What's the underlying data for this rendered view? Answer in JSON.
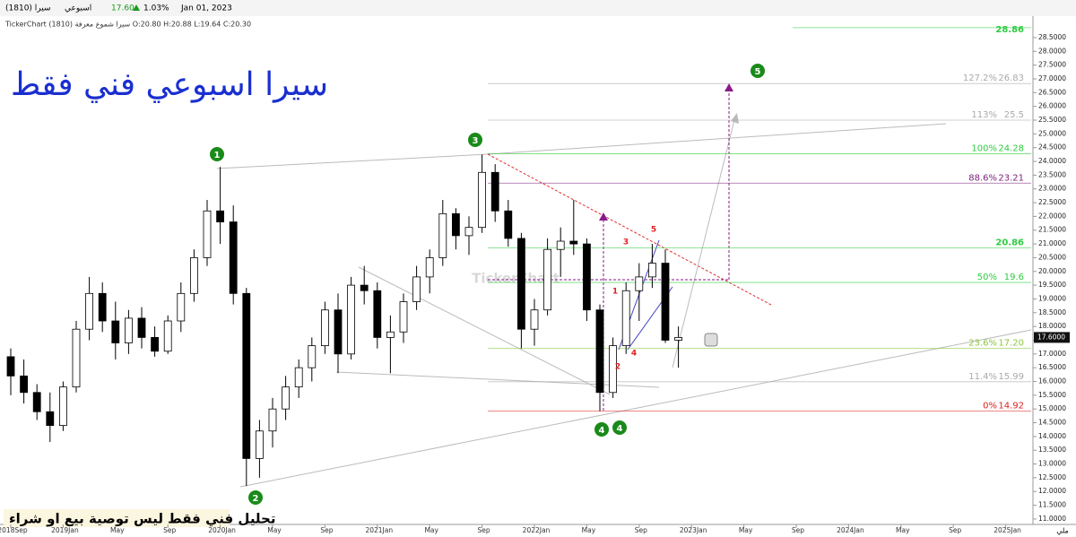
{
  "header": {
    "symbol": "سيرا (1810)",
    "period": "اسبوعي",
    "price": "17.60",
    "change": "1.03%",
    "date": "Jan 01, 2023",
    "info": "TickerChart سيرا شموع معرفة (1810) O:20.80 H:20.88 L:19.64 C:20.30"
  },
  "chart_data": {
    "type": "candlestick",
    "title": "سيرا اسبوعي فني فقط",
    "footer_note": "تحليل فني فقط ليس توصية بيع او شراء",
    "watermark": "TickerChart",
    "axis_unit": "ملي",
    "up_color": "#ffffff",
    "down_color": "#000000",
    "x": [
      "2018-09",
      "2018-10",
      "2018-11",
      "2018-12",
      "2019-01",
      "2019-02",
      "2019-03",
      "2019-04",
      "2019-05",
      "2019-06",
      "2019-07",
      "2019-08",
      "2019-09",
      "2019-10",
      "2019-11",
      "2019-12",
      "2020-01",
      "2020-02",
      "2020-03",
      "2020-04",
      "2020-05",
      "2020-06",
      "2020-07",
      "2020-08",
      "2020-09",
      "2020-10",
      "2020-11",
      "2020-12",
      "2021-01",
      "2021-02",
      "2021-03",
      "2021-04",
      "2021-05",
      "2021-06",
      "2021-07",
      "2021-08",
      "2021-09",
      "2021-10",
      "2021-11",
      "2021-12",
      "2022-01",
      "2022-02",
      "2022-03",
      "2022-04",
      "2022-05",
      "2022-06",
      "2022-07",
      "2022-08",
      "2022-09",
      "2022-10",
      "2022-11",
      "2022-12"
    ],
    "open": [
      16.9,
      16.2,
      15.6,
      14.9,
      14.4,
      15.8,
      17.9,
      19.2,
      18.2,
      17.4,
      18.3,
      17.6,
      17.1,
      18.2,
      19.2,
      20.5,
      22.2,
      21.8,
      19.2,
      13.2,
      14.2,
      15.0,
      15.8,
      16.5,
      17.3,
      18.6,
      17.0,
      19.5,
      19.3,
      17.6,
      17.8,
      18.9,
      19.8,
      20.5,
      22.1,
      21.3,
      21.6,
      23.6,
      22.2,
      21.2,
      17.9,
      18.6,
      20.8,
      21.1,
      21.0,
      18.6,
      15.6,
      17.3,
      19.3,
      19.8,
      20.3,
      17.5
    ],
    "high": [
      17.2,
      16.8,
      15.9,
      15.6,
      16.0,
      18.2,
      19.8,
      19.6,
      18.9,
      18.6,
      18.7,
      18.0,
      18.4,
      19.6,
      20.8,
      22.6,
      23.8,
      22.4,
      19.4,
      14.6,
      15.4,
      16.2,
      16.8,
      17.6,
      18.9,
      19.2,
      19.8,
      20.2,
      19.6,
      18.4,
      19.2,
      20.2,
      20.8,
      22.6,
      22.3,
      22.0,
      24.25,
      23.9,
      22.6,
      21.4,
      19.0,
      21.2,
      21.6,
      22.6,
      21.2,
      18.8,
      17.6,
      19.6,
      20.3,
      21.0,
      20.8,
      18.0
    ],
    "low": [
      15.5,
      15.2,
      14.6,
      13.8,
      14.2,
      15.6,
      17.5,
      17.8,
      16.8,
      17.0,
      17.2,
      16.9,
      17.0,
      17.8,
      18.9,
      20.2,
      21.0,
      18.8,
      12.2,
      12.5,
      13.6,
      14.6,
      15.4,
      16.0,
      17.0,
      16.3,
      16.8,
      18.8,
      17.2,
      16.3,
      17.4,
      18.6,
      19.2,
      20.2,
      20.8,
      20.6,
      21.4,
      21.8,
      20.9,
      17.2,
      17.3,
      18.4,
      19.8,
      20.6,
      18.2,
      14.92,
      15.4,
      17.0,
      18.2,
      19.4,
      17.4,
      16.5
    ],
    "close": [
      16.2,
      15.6,
      14.9,
      14.4,
      15.8,
      17.9,
      19.2,
      18.2,
      17.4,
      18.3,
      17.6,
      17.1,
      18.2,
      19.2,
      20.5,
      22.2,
      21.8,
      19.2,
      13.2,
      14.2,
      15.0,
      15.8,
      16.5,
      17.3,
      18.6,
      17.0,
      19.5,
      19.3,
      17.6,
      17.8,
      18.9,
      19.8,
      20.5,
      22.1,
      21.3,
      21.6,
      23.6,
      22.2,
      21.2,
      17.9,
      18.6,
      20.8,
      21.1,
      21.0,
      18.6,
      15.6,
      17.3,
      19.3,
      19.8,
      20.3,
      17.5,
      17.6
    ],
    "last_price": {
      "value": 17.6,
      "label": "17.6000"
    },
    "fib_levels": [
      {
        "value": 28.86,
        "color": "#2ecc40"
      },
      {
        "pct": "127.2%",
        "value": 26.83,
        "color": "#aaaaaa"
      },
      {
        "pct": "113%",
        "value": 25.5,
        "color": "#aaaaaa"
      },
      {
        "pct": "100%",
        "value": 24.28,
        "color": "#2ecc40"
      },
      {
        "pct": "88.6%",
        "value": 23.21,
        "color": "#7b1f7b"
      },
      {
        "value": 20.86,
        "color": "#2ecc40"
      },
      {
        "pct": "50%",
        "value": 19.6,
        "color": "#2ecc40"
      },
      {
        "pct": "23.6%",
        "value": 17.2,
        "value_label": "17.20",
        "color": "#8cc63f"
      },
      {
        "pct": "11.4%",
        "value": 15.99,
        "color": "#aaaaaa"
      },
      {
        "pct": "0%",
        "value": 14.92,
        "color": "#e0201c"
      }
    ],
    "wave_circles": [
      "1",
      "2",
      "3",
      "4",
      "4",
      "5"
    ],
    "wave_labels": [
      "1",
      "2",
      "3",
      "4",
      "5"
    ],
    "ylim": [
      10.9,
      29.15
    ],
    "yticks": [
      {
        "value": 11,
        "label": "11.0000"
      },
      {
        "value": 11.5,
        "label": "11.5000"
      },
      {
        "value": 12,
        "label": "12.0000"
      },
      {
        "value": 12.5,
        "label": "12.5000"
      },
      {
        "value": 13,
        "label": "13.0000"
      },
      {
        "value": 13.5,
        "label": "13.5000"
      },
      {
        "value": 14,
        "label": "14.0000"
      },
      {
        "value": 14.5,
        "label": "14.5000"
      },
      {
        "value": 15,
        "label": "15.0000"
      },
      {
        "value": 15.5,
        "label": "15.5000"
      },
      {
        "value": 16,
        "label": "16.0000"
      },
      {
        "value": 16.5,
        "label": "16.5000"
      },
      {
        "value": 17,
        "label": "17.0000"
      },
      {
        "value": 17.5,
        "label": "17.5000"
      },
      {
        "value": 18,
        "label": "18.0000"
      },
      {
        "value": 18.5,
        "label": "18.5000"
      },
      {
        "value": 19,
        "label": "19.0000"
      },
      {
        "value": 19.5,
        "label": "19.5000"
      },
      {
        "value": 20,
        "label": "20.0000"
      },
      {
        "value": 20.5,
        "label": "20.5000"
      },
      {
        "value": 21,
        "label": "21.0000"
      },
      {
        "value": 21.5,
        "label": "21.5000"
      },
      {
        "value": 22,
        "label": "22.0000"
      },
      {
        "value": 22.5,
        "label": "22.5000"
      },
      {
        "value": 23,
        "label": "23.0000"
      },
      {
        "value": 23.5,
        "label": "23.5000"
      },
      {
        "value": 24,
        "label": "24.0000"
      },
      {
        "value": 24.5,
        "label": "24.5000"
      },
      {
        "value": 25,
        "label": "25.0000"
      },
      {
        "value": 25.5,
        "label": "25.5000"
      },
      {
        "value": 26,
        "label": "26.0000"
      },
      {
        "value": 26.5,
        "label": "26.5000"
      },
      {
        "value": 27,
        "label": "27.0000"
      },
      {
        "value": 27.5,
        "label": "27.5000"
      },
      {
        "value": 28,
        "label": "28.0000"
      },
      {
        "value": 28.5,
        "label": "28.5000"
      }
    ],
    "xticks": [
      {
        "value": "2018-09",
        "label": "2018Sep"
      },
      {
        "value": "2019-01",
        "label": "2019Jan"
      },
      {
        "value": "2019-05",
        "label": "May"
      },
      {
        "value": "2019-09",
        "label": "Sep"
      },
      {
        "value": "2020-01",
        "label": "2020Jan"
      },
      {
        "value": "2020-05",
        "label": "May"
      },
      {
        "value": "2020-09",
        "label": "Sep"
      },
      {
        "value": "2021-01",
        "label": "2021Jan"
      },
      {
        "value": "2021-05",
        "label": "May"
      },
      {
        "value": "2021-09",
        "label": "Sep"
      },
      {
        "value": "2022-01",
        "label": "2022Jan"
      },
      {
        "value": "2022-05",
        "label": "May"
      },
      {
        "value": "2022-09",
        "label": "Sep"
      },
      {
        "value": "2023-01",
        "label": "2023Jan"
      },
      {
        "value": "2023-05",
        "label": "May"
      },
      {
        "value": "2023-09",
        "label": "Sep"
      },
      {
        "value": "2024-01",
        "label": "2024Jan"
      },
      {
        "value": "2024-05",
        "label": "May"
      },
      {
        "value": "2024-09",
        "label": "Sep"
      },
      {
        "value": "2025-01",
        "label": "2025Jan"
      }
    ]
  }
}
